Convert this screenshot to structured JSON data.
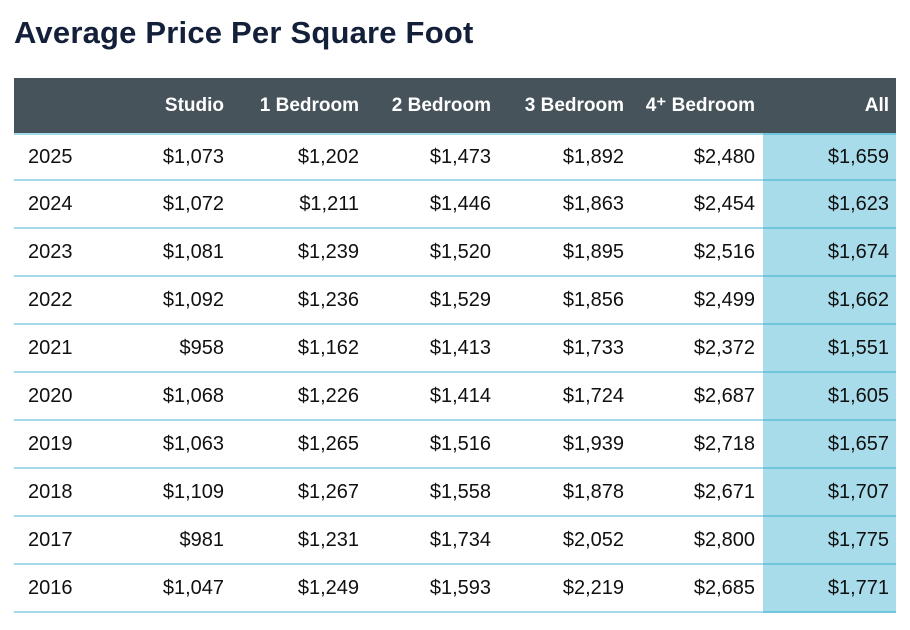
{
  "page": {
    "title": "Average Price Per Square Foot"
  },
  "table": {
    "header": {
      "year": "",
      "columns": [
        "Studio",
        "1 Bedroom",
        "2 Bedroom",
        "3 Bedroom",
        "4⁺ Bedroom",
        "All"
      ]
    },
    "rows": [
      {
        "year": "2025",
        "values": [
          "$1,073",
          "$1,202",
          "$1,473",
          "$1,892",
          "$2,480",
          "$1,659"
        ]
      },
      {
        "year": "2024",
        "values": [
          "$1,072",
          "$1,211",
          "$1,446",
          "$1,863",
          "$2,454",
          "$1,623"
        ]
      },
      {
        "year": "2023",
        "values": [
          "$1,081",
          "$1,239",
          "$1,520",
          "$1,895",
          "$2,516",
          "$1,674"
        ]
      },
      {
        "year": "2022",
        "values": [
          "$1,092",
          "$1,236",
          "$1,529",
          "$1,856",
          "$2,499",
          "$1,662"
        ]
      },
      {
        "year": "2021",
        "values": [
          "$958",
          "$1,162",
          "$1,413",
          "$1,733",
          "$2,372",
          "$1,551"
        ]
      },
      {
        "year": "2020",
        "values": [
          "$1,068",
          "$1,226",
          "$1,414",
          "$1,724",
          "$2,687",
          "$1,605"
        ]
      },
      {
        "year": "2019",
        "values": [
          "$1,063",
          "$1,265",
          "$1,516",
          "$1,939",
          "$2,718",
          "$1,657"
        ]
      },
      {
        "year": "2018",
        "values": [
          "$1,109",
          "$1,267",
          "$1,558",
          "$1,878",
          "$2,671",
          "$1,707"
        ]
      },
      {
        "year": "2017",
        "values": [
          "$981",
          "$1,231",
          "$1,734",
          "$2,052",
          "$2,800",
          "$1,775"
        ]
      },
      {
        "year": "2016",
        "values": [
          "$1,047",
          "$1,249",
          "$1,593",
          "$2,219",
          "$2,685",
          "$1,771"
        ]
      }
    ]
  },
  "chart_data": {
    "type": "table",
    "title": "Average Price Per Square Foot",
    "columns": [
      "Studio",
      "1 Bedroom",
      "2 Bedroom",
      "3 Bedroom",
      "4+ Bedroom",
      "All"
    ],
    "row_labels": [
      "2025",
      "2024",
      "2023",
      "2022",
      "2021",
      "2020",
      "2019",
      "2018",
      "2017",
      "2016"
    ],
    "values": [
      [
        1073,
        1202,
        1473,
        1892,
        2480,
        1659
      ],
      [
        1072,
        1211,
        1446,
        1863,
        2454,
        1623
      ],
      [
        1081,
        1239,
        1520,
        1895,
        2516,
        1674
      ],
      [
        1092,
        1236,
        1529,
        1856,
        2499,
        1662
      ],
      [
        958,
        1162,
        1413,
        1733,
        2372,
        1551
      ],
      [
        1068,
        1226,
        1414,
        1724,
        2687,
        1605
      ],
      [
        1063,
        1265,
        1516,
        1939,
        2718,
        1657
      ],
      [
        1109,
        1267,
        1558,
        1878,
        2671,
        1707
      ],
      [
        981,
        1231,
        1734,
        2052,
        2800,
        1775
      ],
      [
        1047,
        1249,
        1593,
        2219,
        2685,
        1771
      ]
    ],
    "unit": "USD per square foot",
    "highlighted_column": "All"
  },
  "colors": {
    "title_text": "#14203a",
    "header_bg": "#46535b",
    "header_text": "#ffffff",
    "all_column_bg": "#a9dcea",
    "row_divider": "rgba(38,166,199,0.42)",
    "cell_text": "#101010"
  }
}
